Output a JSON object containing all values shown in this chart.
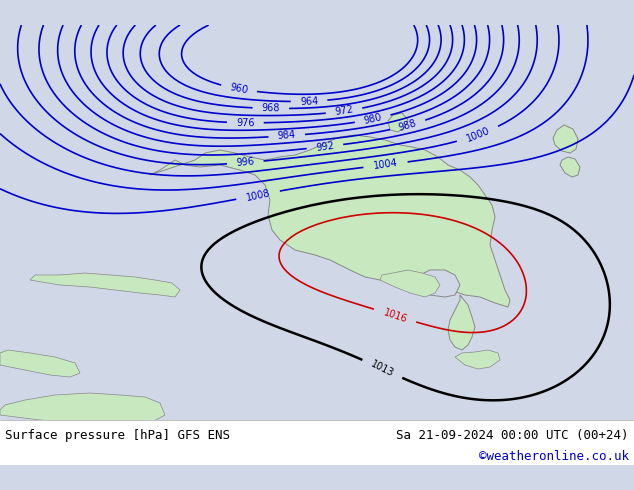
{
  "title_left": "Surface pressure [hPa] GFS ENS",
  "title_right": "Sa 21-09-2024 00:00 UTC (00+24)",
  "copyright": "©weatheronline.co.uk",
  "bg_color": "#d0d8e8",
  "land_color": "#c8e8c0",
  "coastline_color": "#888888",
  "bottom_bar_color": "#ffffff",
  "text_color_black": "#000000",
  "text_color_blue": "#0000cc",
  "text_color_red": "#cc0000",
  "font_size_label": 9,
  "font_size_title": 9
}
